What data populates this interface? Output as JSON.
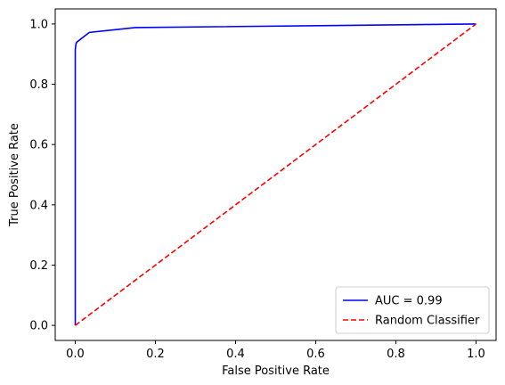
{
  "chart_data": {
    "type": "line",
    "title": "",
    "xlabel": "False Positive Rate",
    "ylabel": "True Positive Rate",
    "xlim": [
      -0.05,
      1.05
    ],
    "ylim": [
      -0.05,
      1.05
    ],
    "xticks": [
      0.0,
      0.2,
      0.4,
      0.6,
      0.8,
      1.0
    ],
    "yticks": [
      0.0,
      0.2,
      0.4,
      0.6,
      0.8,
      1.0
    ],
    "tick_labels": {
      "x": [
        "0.0",
        "0.2",
        "0.4",
        "0.6",
        "0.8",
        "1.0"
      ],
      "y": [
        "0.0",
        "0.2",
        "0.4",
        "0.6",
        "0.8",
        "1.0"
      ]
    },
    "grid": false,
    "legend_position": "lower-right",
    "series": [
      {
        "name": "AUC = 0.99",
        "color": "#0000ff",
        "style": "solid",
        "x": [
          0.0,
          0.0,
          0.001,
          0.002,
          0.004,
          0.035,
          0.15,
          1.0
        ],
        "y": [
          0.0,
          0.915,
          0.925,
          0.935,
          0.94,
          0.972,
          0.988,
          1.0
        ]
      },
      {
        "name": "Random Classifier",
        "color": "#ff0000",
        "style": "dashed",
        "x": [
          0.0,
          1.0
        ],
        "y": [
          0.0,
          1.0
        ]
      }
    ]
  }
}
